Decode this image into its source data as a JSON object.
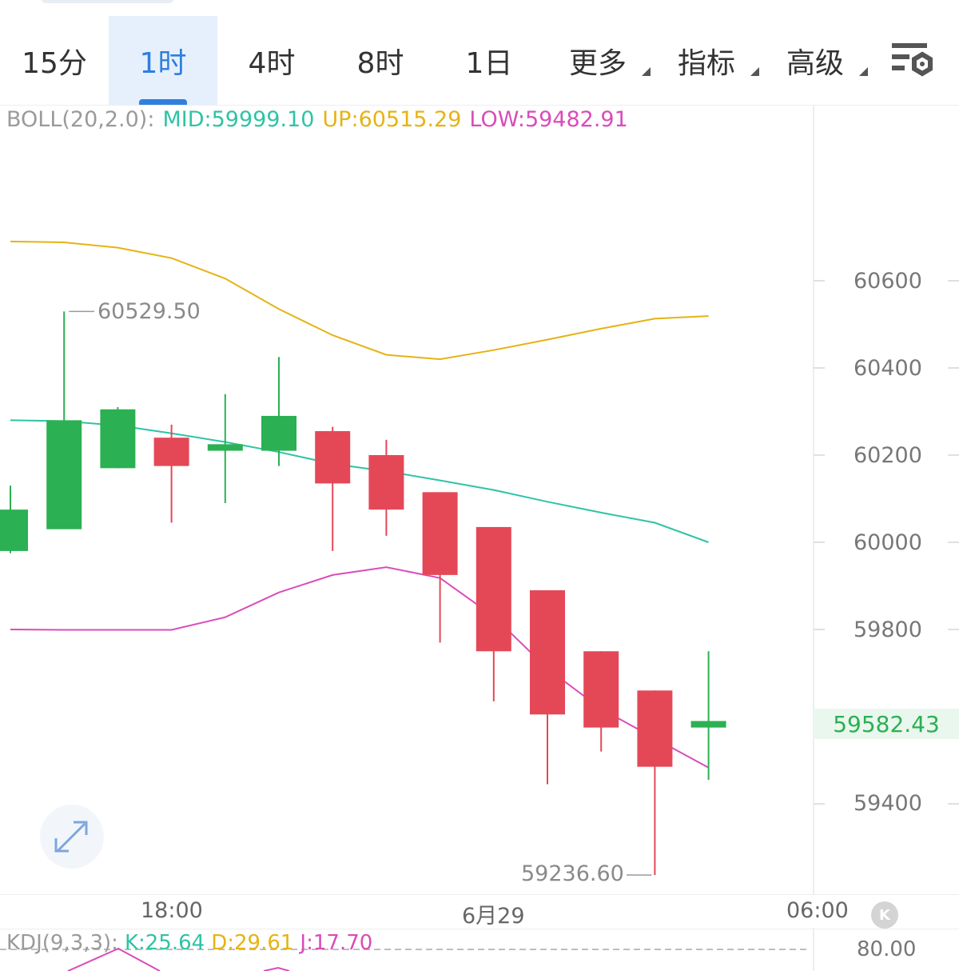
{
  "tabs": [
    {
      "label": "15分",
      "active": false,
      "dropdown": false
    },
    {
      "label": "1时",
      "active": true,
      "dropdown": false
    },
    {
      "label": "4时",
      "active": false,
      "dropdown": false
    },
    {
      "label": "8时",
      "active": false,
      "dropdown": false
    },
    {
      "label": "1日",
      "active": false,
      "dropdown": false
    },
    {
      "label": "更多",
      "active": false,
      "dropdown": true
    },
    {
      "label": "指标",
      "active": false,
      "dropdown": true
    },
    {
      "label": "高级",
      "active": false,
      "dropdown": true
    }
  ],
  "boll": {
    "label": "BOLL(20,2.0):",
    "mid": "MID:59999.10",
    "up": "UP:60515.29",
    "low": "LOW:59482.91"
  },
  "price_axis": {
    "labels": [
      "60600",
      "60400",
      "60200",
      "60000",
      "59800",
      "59400"
    ],
    "current_price": "59582.43"
  },
  "markers": {
    "high": "60529.50",
    "low": "59236.60"
  },
  "time_axis": {
    "labels": [
      "18:00",
      "6月29",
      "06:00"
    ],
    "k_button": "K"
  },
  "kdj": {
    "label": "KDJ(9,3,3):",
    "k": "K:25.64",
    "d": "D:29.61",
    "j": "J:17.70",
    "axis_value": "80.00"
  },
  "colors": {
    "up_candle": "#2bb053",
    "down_candle": "#e44857",
    "mid_line": "#2fc3a5",
    "upper_band": "#e5b314",
    "lower_band": "#d94cb9",
    "accent": "#2f7fdd"
  },
  "chart_data": {
    "type": "candlestick",
    "title": "",
    "ylim": [
      59200,
      60900
    ],
    "x_ticks": [
      "18:00",
      "6月29",
      "06:00"
    ],
    "candles": [
      {
        "o": 59980,
        "h": 60130,
        "l": 59975,
        "c": 60075
      },
      {
        "o": 60030,
        "h": 60529.5,
        "l": 60030,
        "c": 60280
      },
      {
        "o": 60170,
        "h": 60310,
        "l": 60170,
        "c": 60305
      },
      {
        "o": 60240,
        "h": 60270,
        "l": 60045,
        "c": 60175
      },
      {
        "o": 60210,
        "h": 60340,
        "l": 60090,
        "c": 60225
      },
      {
        "o": 60210,
        "h": 60425,
        "l": 60175,
        "c": 60290
      },
      {
        "o": 60255,
        "h": 60265,
        "l": 59980,
        "c": 60135
      },
      {
        "o": 60200,
        "h": 60235,
        "l": 60015,
        "c": 60075
      },
      {
        "o": 60115,
        "h": 60115,
        "l": 59770,
        "c": 59925
      },
      {
        "o": 60035,
        "h": 60035,
        "l": 59635,
        "c": 59750
      },
      {
        "o": 59890,
        "h": 59890,
        "l": 59445,
        "c": 59605
      },
      {
        "o": 59750,
        "h": 59750,
        "l": 59520,
        "c": 59575
      },
      {
        "o": 59660,
        "h": 59660,
        "l": 59236.6,
        "c": 59485
      },
      {
        "o": 59575,
        "h": 59750,
        "l": 59455,
        "c": 59590
      }
    ],
    "series": [
      {
        "name": "UP",
        "values": [
          60690,
          60688,
          60676,
          60652,
          60605,
          60535,
          60475,
          60430,
          60420,
          60441,
          60465,
          60490,
          60513,
          60519
        ]
      },
      {
        "name": "MID",
        "values": [
          60280,
          60278,
          60268,
          60250,
          60230,
          60207,
          60180,
          60163,
          60142,
          60120,
          60093,
          60068,
          60045,
          60000
        ]
      },
      {
        "name": "LOW",
        "values": [
          59800,
          59799,
          59799,
          59799,
          59828,
          59885,
          59925,
          59943,
          59918,
          59830,
          59710,
          59618,
          59550,
          59483
        ]
      }
    ]
  }
}
